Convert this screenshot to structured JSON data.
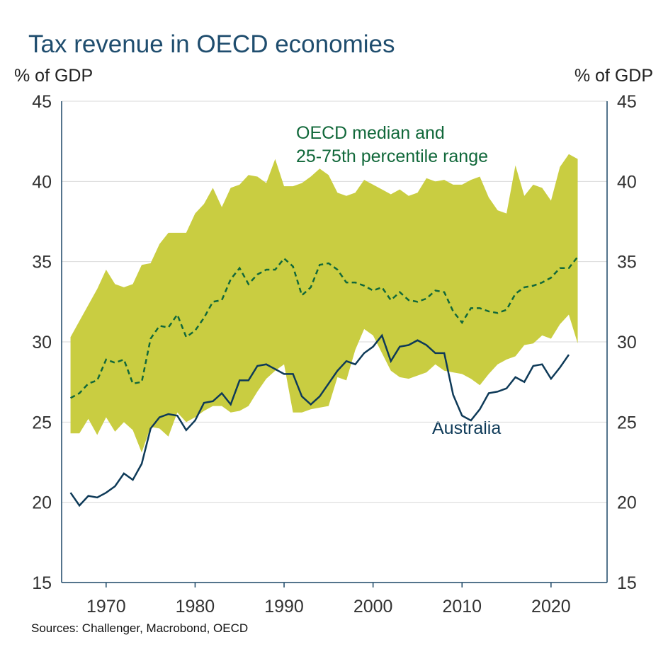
{
  "chart_data": {
    "type": "band-line",
    "title": "Tax revenue in OECD economies",
    "ylabel": "% of GDP",
    "y2label": "% of GDP",
    "source": "Sources: Challenger, Macrobond, OECD",
    "annotations": [
      "OECD median and",
      "25-75th percentile range",
      "Australia"
    ],
    "x": [
      1966,
      1967,
      1968,
      1969,
      1970,
      1971,
      1972,
      1973,
      1974,
      1975,
      1976,
      1977,
      1978,
      1979,
      1980,
      1981,
      1982,
      1983,
      1984,
      1985,
      1986,
      1987,
      1988,
      1989,
      1990,
      1991,
      1992,
      1993,
      1994,
      1995,
      1996,
      1997,
      1998,
      1999,
      2000,
      2001,
      2002,
      2003,
      2004,
      2005,
      2006,
      2007,
      2008,
      2009,
      2010,
      2011,
      2012,
      2013,
      2014,
      2015,
      2016,
      2017,
      2018,
      2019,
      2020,
      2021,
      2022,
      2023
    ],
    "xlim": [
      1965,
      2026.3
    ],
    "xticks": [
      1970,
      1980,
      1990,
      2000,
      2010,
      2020
    ],
    "ylim": [
      15,
      45
    ],
    "yticks": [
      15,
      20,
      25,
      30,
      35,
      40,
      45
    ],
    "y2lim": [
      15,
      45
    ],
    "y2ticks": [
      15,
      20,
      25,
      30,
      35,
      40,
      45
    ],
    "grid": true,
    "band": {
      "color": "#c9cd41",
      "upper": [
        30.3,
        31.3,
        32.3,
        33.3,
        34.5,
        33.6,
        33.4,
        33.6,
        34.8,
        34.9,
        36.1,
        36.8,
        36.8,
        36.8,
        38.0,
        38.6,
        39.6,
        38.4,
        39.6,
        39.8,
        40.4,
        40.3,
        39.9,
        41.4,
        39.7,
        39.7,
        39.9,
        40.3,
        40.8,
        40.4,
        39.3,
        39.1,
        39.3,
        40.1,
        39.8,
        39.5,
        39.2,
        39.5,
        39.1,
        39.3,
        40.2,
        40.0,
        40.1,
        39.8,
        39.8,
        40.1,
        40.3,
        39.0,
        38.2,
        38.0,
        41.0,
        39.1,
        39.8,
        39.6,
        38.8,
        40.9,
        41.7,
        41.4
      ],
      "lower": [
        24.3,
        24.3,
        25.2,
        24.2,
        25.3,
        24.4,
        25.0,
        24.5,
        23.1,
        24.7,
        24.6,
        24.1,
        25.6,
        25.0,
        25.3,
        25.7,
        26.0,
        26.0,
        25.6,
        25.7,
        26.0,
        26.9,
        27.7,
        28.2,
        28.6,
        25.6,
        25.6,
        25.8,
        25.9,
        26.0,
        27.8,
        27.6,
        29.5,
        30.8,
        30.4,
        29.3,
        28.2,
        27.8,
        27.7,
        27.9,
        28.1,
        28.6,
        28.2,
        28.1,
        28.0,
        27.7,
        27.3,
        28.0,
        28.6,
        28.9,
        29.1,
        29.8,
        29.9,
        30.4,
        30.2,
        31.1,
        31.7,
        29.9
      ]
    },
    "series": [
      {
        "color": "#11683a",
        "dashed": true,
        "values": [
          26.5,
          26.8,
          27.4,
          27.6,
          28.9,
          28.7,
          28.9,
          27.4,
          27.5,
          30.2,
          31.0,
          30.9,
          31.7,
          30.3,
          30.7,
          31.5,
          32.5,
          32.6,
          33.9,
          34.6,
          33.6,
          34.2,
          34.5,
          34.5,
          35.2,
          34.7,
          32.9,
          33.4,
          34.8,
          34.9,
          34.5,
          33.7,
          33.7,
          33.5,
          33.2,
          33.4,
          32.6,
          33.1,
          32.6,
          32.5,
          32.7,
          33.2,
          33.1,
          31.9,
          31.2,
          32.1,
          32.1,
          31.9,
          31.8,
          32.0,
          33.0,
          33.4,
          33.5,
          33.7,
          34.0,
          34.6,
          34.6,
          35.3
        ]
      },
      {
        "color": "#0e3a58",
        "dashed": false,
        "values": [
          20.6,
          19.8,
          20.4,
          20.3,
          20.6,
          21.0,
          21.8,
          21.4,
          22.4,
          24.6,
          25.3,
          25.5,
          25.4,
          24.5,
          25.1,
          26.2,
          26.3,
          26.8,
          26.1,
          27.6,
          27.6,
          28.5,
          28.6,
          28.3,
          28.0,
          28.0,
          26.6,
          26.1,
          26.6,
          27.4,
          28.2,
          28.8,
          28.6,
          29.3,
          29.7,
          30.4,
          28.8,
          29.7,
          29.8,
          30.1,
          29.8,
          29.3,
          29.3,
          26.7,
          25.4,
          25.1,
          25.8,
          26.8,
          26.9,
          27.1,
          27.8,
          27.5,
          28.5,
          28.6,
          27.7,
          28.4,
          29.2,
          null
        ]
      }
    ]
  }
}
